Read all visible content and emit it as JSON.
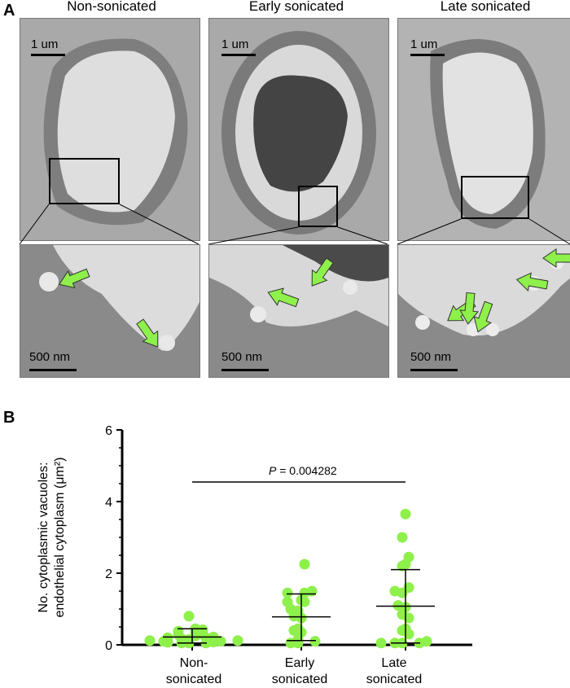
{
  "panelA": {
    "letter": "A",
    "columns": [
      {
        "title": "Non-sonicated",
        "top_scale": "1 um",
        "bottom_scale": "500 nm"
      },
      {
        "title": "Early sonicated",
        "top_scale": "1 um",
        "bottom_scale": "500 nm"
      },
      {
        "title": "Late sonicated",
        "top_scale": "1 um",
        "bottom_scale": "500 nm"
      }
    ],
    "arrow_color": "#8ef04a"
  },
  "panelB": {
    "letter": "B",
    "ylabel_line1": "No. cytoplasmic vacuoles:",
    "ylabel_line2": "endothelial cytoplasm (μm²)",
    "p_prefix": "P",
    "p_value": " = 0.004282",
    "cat_labels": [
      [
        "Non-",
        "sonicated"
      ],
      [
        "Early",
        "sonicated"
      ],
      [
        "Late",
        "sonicated"
      ]
    ]
  },
  "chart_data": {
    "type": "scatter",
    "ylim": [
      0,
      6
    ],
    "yticks": [
      "0",
      "2",
      "4",
      "6"
    ],
    "point_color": "#8ef04a",
    "series": [
      {
        "category": "Non-sonicated",
        "mean": 0.22,
        "sd_low": 0.05,
        "sd_high": 0.45,
        "values": [
          0.05,
          0.05,
          0.05,
          0.07,
          0.08,
          0.1,
          0.1,
          0.12,
          0.12,
          0.15,
          0.17,
          0.2,
          0.2,
          0.22,
          0.25,
          0.28,
          0.3,
          0.35,
          0.38,
          0.42,
          0.45,
          0.8
        ]
      },
      {
        "category": "Early sonicated",
        "mean": 0.78,
        "sd_low": 0.12,
        "sd_high": 1.42,
        "values": [
          0.05,
          0.05,
          0.1,
          0.15,
          0.35,
          0.4,
          0.45,
          0.75,
          0.8,
          0.95,
          1.0,
          1.2,
          1.2,
          1.25,
          1.45,
          1.45,
          1.5,
          2.25
        ]
      },
      {
        "category": "Late sonicated",
        "mean": 1.08,
        "sd_low": 0.05,
        "sd_high": 2.1,
        "values": [
          0.05,
          0.05,
          0.05,
          0.05,
          0.1,
          0.3,
          0.4,
          0.45,
          0.75,
          0.85,
          1.05,
          1.1,
          1.45,
          1.5,
          1.6,
          2.2,
          2.25,
          2.45,
          3.0,
          3.65
        ]
      }
    ]
  }
}
